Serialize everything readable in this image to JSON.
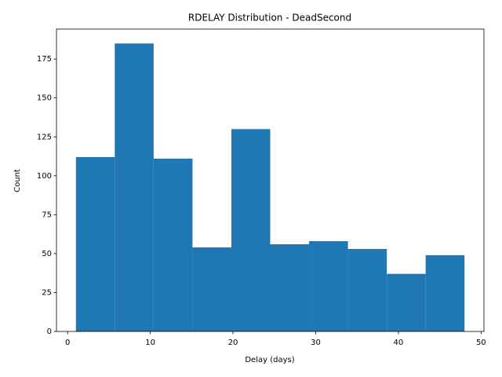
{
  "chart_data": {
    "type": "histogram",
    "title": "RDELAY Distribution - DeadSecond",
    "xlabel": "Delay (days)",
    "ylabel": "Count",
    "bins": [
      1,
      5.7,
      10.4,
      15.1,
      19.8,
      24.5,
      29.2,
      33.9,
      38.6,
      43.3,
      48
    ],
    "values": [
      112,
      185,
      111,
      54,
      130,
      56,
      58,
      53,
      37,
      49
    ],
    "color": "#1f77b4",
    "xlim": [
      -1.35,
      50.35
    ],
    "xticks": [
      0,
      10,
      20,
      30,
      40,
      50
    ],
    "ylim": [
      0,
      194.25
    ],
    "yticks": [
      0,
      25,
      50,
      75,
      100,
      125,
      150,
      175
    ]
  }
}
